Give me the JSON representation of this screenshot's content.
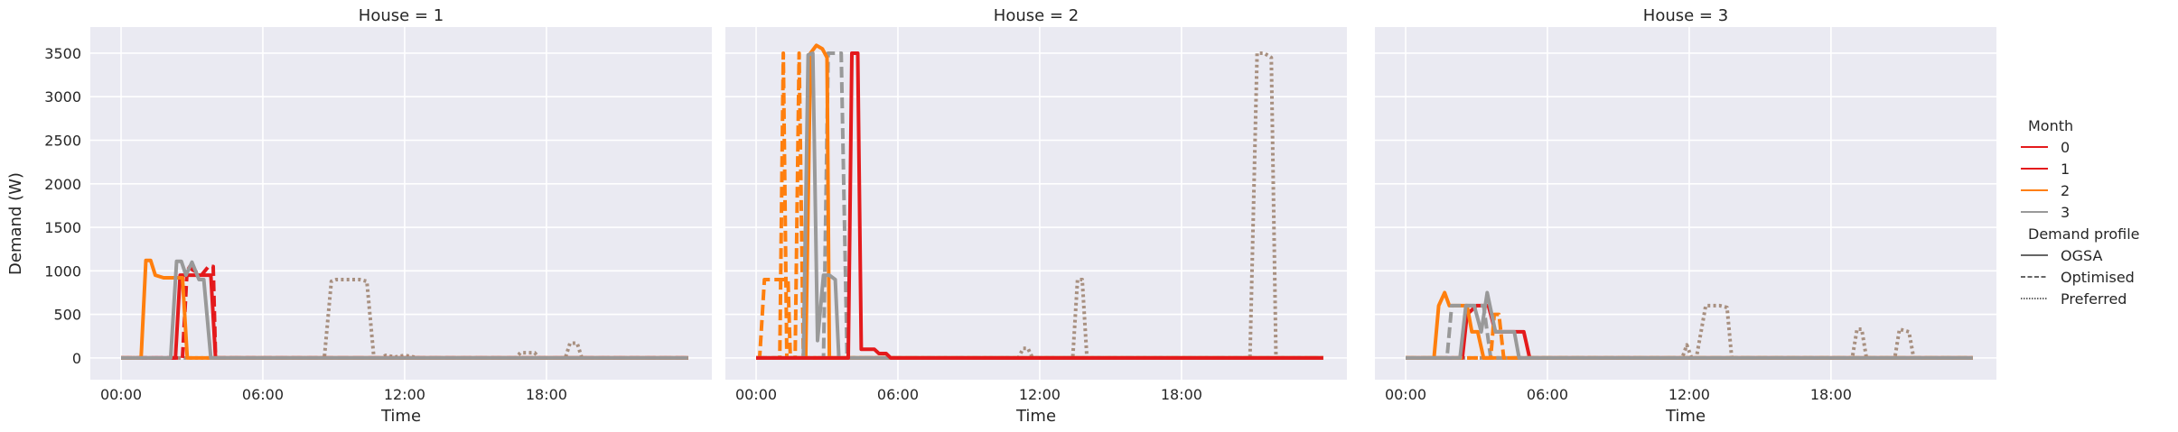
{
  "chart_data": {
    "type": "line",
    "figure": "faceted line chart of household demand",
    "ylabel": "Demand (W)",
    "xlabel": "Time",
    "ylim": [
      -250,
      3800
    ],
    "yticks": [
      0,
      500,
      1000,
      1500,
      2000,
      2500,
      3000,
      3500
    ],
    "xlim_hours": [
      -1.3,
      25.0
    ],
    "xticks": [
      {
        "h": 0,
        "label": "00:00"
      },
      {
        "h": 6,
        "label": "06:00"
      },
      {
        "h": 12,
        "label": "12:00"
      },
      {
        "h": 18,
        "label": "18:00"
      }
    ],
    "legend": {
      "placement": "right",
      "title": "Month",
      "hue_entries": [
        {
          "label": "0",
          "color": "#e41a1c"
        },
        {
          "label": "1",
          "color": "#e41a1c"
        },
        {
          "label": "2",
          "color": "#ff7f0e"
        },
        {
          "label": "3",
          "color": "#999999"
        }
      ],
      "style_title": "Demand profile",
      "style_entries": [
        {
          "label": "OGSA",
          "dash": "solid"
        },
        {
          "label": "Optimised",
          "dash": "dashed"
        },
        {
          "label": "Preferred",
          "dash": "dotted"
        }
      ]
    },
    "panels": [
      {
        "title": "House = 1",
        "series": [
          {
            "month": "3",
            "profile": "Preferred",
            "color": "#a89080",
            "x": [
              0,
              8.6,
              8.9,
              9.1,
              10.1,
              10.4,
              10.7,
              11,
              11.2,
              11.6,
              12,
              12.6,
              16.7,
              16.9,
              17.5,
              17.7,
              18.8,
              19,
              19.3,
              19.5,
              24
            ],
            "y": [
              0,
              0,
              880,
              900,
              900,
              880,
              0,
              0,
              30,
              10,
              30,
              0,
              0,
              60,
              60,
              0,
              0,
              170,
              170,
              0,
              0
            ]
          },
          {
            "month": "1",
            "profile": "OGSA",
            "color": "#e41a1c",
            "x": [
              0,
              2.3,
              2.5,
              3.5,
              3.8,
              4.0,
              24
            ],
            "y": [
              0,
              0,
              950,
              950,
              950,
              0,
              0
            ]
          },
          {
            "month": "1",
            "profile": "Optimised",
            "color": "#e41a1c",
            "x": [
              0,
              2.6,
              2.8,
              3.4,
              3.7,
              3.9,
              4.0,
              24
            ],
            "y": [
              0,
              0,
              1050,
              950,
              1050,
              1050,
              0,
              0
            ]
          },
          {
            "month": "2",
            "profile": "OGSA",
            "color": "#ff7f0e",
            "x": [
              0,
              0.85,
              1.05,
              1.25,
              1.45,
              1.8,
              2.2,
              2.6,
              2.8,
              24
            ],
            "y": [
              0,
              0,
              1120,
              1120,
              950,
              920,
              920,
              920,
              0,
              0
            ]
          },
          {
            "month": "3",
            "profile": "OGSA",
            "color": "#999999",
            "x": [
              0,
              2.1,
              2.35,
              2.55,
              2.75,
              3.0,
              3.3,
              3.5,
              3.8,
              24
            ],
            "y": [
              0,
              0,
              1110,
              1110,
              950,
              1100,
              900,
              900,
              0,
              0
            ]
          }
        ]
      },
      {
        "title": "House = 2",
        "series": [
          {
            "month": "3",
            "profile": "Preferred",
            "color": "#a89080",
            "x": [
              0,
              11.1,
              11.3,
              11.5,
              11.7,
              13.4,
              13.6,
              13.8,
              14.0,
              20.9,
              21.2,
              21.5,
              21.8,
              22.0,
              24
            ],
            "y": [
              0,
              0,
              110,
              110,
              0,
              0,
              900,
              900,
              0,
              0,
              3500,
              3500,
              3450,
              0,
              0
            ]
          },
          {
            "month": "2",
            "profile": "Optimised",
            "color": "#ff7f0e",
            "x": [
              0,
              0.15,
              0.35,
              1.2,
              1.35,
              1.45,
              24
            ],
            "y": [
              0,
              0,
              900,
              900,
              900,
              0,
              0
            ]
          },
          {
            "month": "2",
            "profile": "Optimised",
            "color": "#ff7f0e",
            "x": [
              0,
              1.0,
              1.15,
              1.3,
              24
            ],
            "y": [
              0,
              0,
              3500,
              0,
              0
            ]
          },
          {
            "month": "2",
            "profile": "Optimised",
            "color": "#ff7f0e",
            "x": [
              0,
              1.65,
              1.82,
              2.0,
              24
            ],
            "y": [
              0,
              0,
              3500,
              0,
              0
            ]
          },
          {
            "month": "3",
            "profile": "Optimised",
            "color": "#999999",
            "x": [
              0,
              2.85,
              3.05,
              3.25,
              3.6,
              3.85,
              24
            ],
            "y": [
              0,
              0,
              3500,
              3500,
              3500,
              0,
              0
            ]
          },
          {
            "month": "2",
            "profile": "OGSA",
            "color": "#ff7f0e",
            "x": [
              0,
              2.1,
              2.3,
              2.55,
              2.8,
              3.0,
              3.1,
              24
            ],
            "y": [
              0,
              0,
              3500,
              3590,
              3550,
              3450,
              0,
              0
            ]
          },
          {
            "month": "3",
            "profile": "OGSA",
            "color": "#999999",
            "x": [
              0,
              2.0,
              2.2,
              2.4,
              2.6,
              2.85,
              3.1,
              3.35,
              3.5,
              24
            ],
            "y": [
              0,
              0,
              3480,
              3500,
              200,
              950,
              950,
              900,
              0,
              0
            ]
          },
          {
            "month": "1",
            "profile": "OGSA",
            "color": "#e41a1c",
            "x": [
              0,
              3.9,
              4.05,
              4.3,
              4.45,
              4.6,
              5.0,
              5.2,
              5.5,
              5.7,
              24
            ],
            "y": [
              0,
              0,
              3500,
              3500,
              100,
              100,
              100,
              50,
              50,
              0,
              0
            ]
          }
        ]
      },
      {
        "title": "House = 3",
        "series": [
          {
            "month": "3",
            "profile": "Preferred",
            "color": "#a89080",
            "x": [
              0,
              11.7,
              11.9,
              12.1,
              12.3,
              12.7,
              13.3,
              13.6,
              13.8,
              18.9,
              19.1,
              19.3,
              19.5,
              20.7,
              20.9,
              21.3,
              21.5,
              24
            ],
            "y": [
              0,
              0,
              150,
              0,
              0,
              600,
              600,
              580,
              0,
              0,
              330,
              330,
              0,
              0,
              330,
              300,
              0,
              0
            ]
          },
          {
            "month": "1",
            "profile": "OGSA",
            "color": "#e41a1c",
            "x": [
              0,
              2.4,
              2.6,
              3.0,
              3.5,
              3.8,
              4.2,
              4.6,
              5.0,
              5.25,
              24
            ],
            "y": [
              0,
              0,
              500,
              600,
              600,
              300,
              300,
              300,
              300,
              0,
              0
            ]
          },
          {
            "month": "2",
            "profile": "OGSA",
            "color": "#ff7f0e",
            "x": [
              0,
              1.2,
              1.4,
              1.65,
              1.85,
              2.1,
              2.35,
              2.6,
              2.8,
              3.05,
              3.3,
              24
            ],
            "y": [
              0,
              0,
              600,
              750,
              600,
              600,
              600,
              600,
              300,
              300,
              0,
              0
            ]
          },
          {
            "month": "3",
            "profile": "Optimised",
            "color": "#999999",
            "x": [
              0,
              1.75,
              1.95,
              2.15,
              3.3,
              3.6,
              24
            ],
            "y": [
              0,
              0,
              600,
              600,
              600,
              0,
              0
            ]
          },
          {
            "month": "2",
            "profile": "Optimised",
            "color": "#ff7f0e",
            "x": [
              0,
              3.6,
              3.75,
              3.95,
              4.15,
              24
            ],
            "y": [
              0,
              0,
              500,
              500,
              0,
              0
            ]
          },
          {
            "month": "3",
            "profile": "OGSA",
            "color": "#999999",
            "x": [
              0,
              2.3,
              2.55,
              2.9,
              3.2,
              3.45,
              3.8,
              4.0,
              4.6,
              4.8,
              24
            ],
            "y": [
              0,
              0,
              600,
              600,
              300,
              750,
              300,
              300,
              300,
              0,
              0
            ]
          }
        ]
      }
    ]
  }
}
